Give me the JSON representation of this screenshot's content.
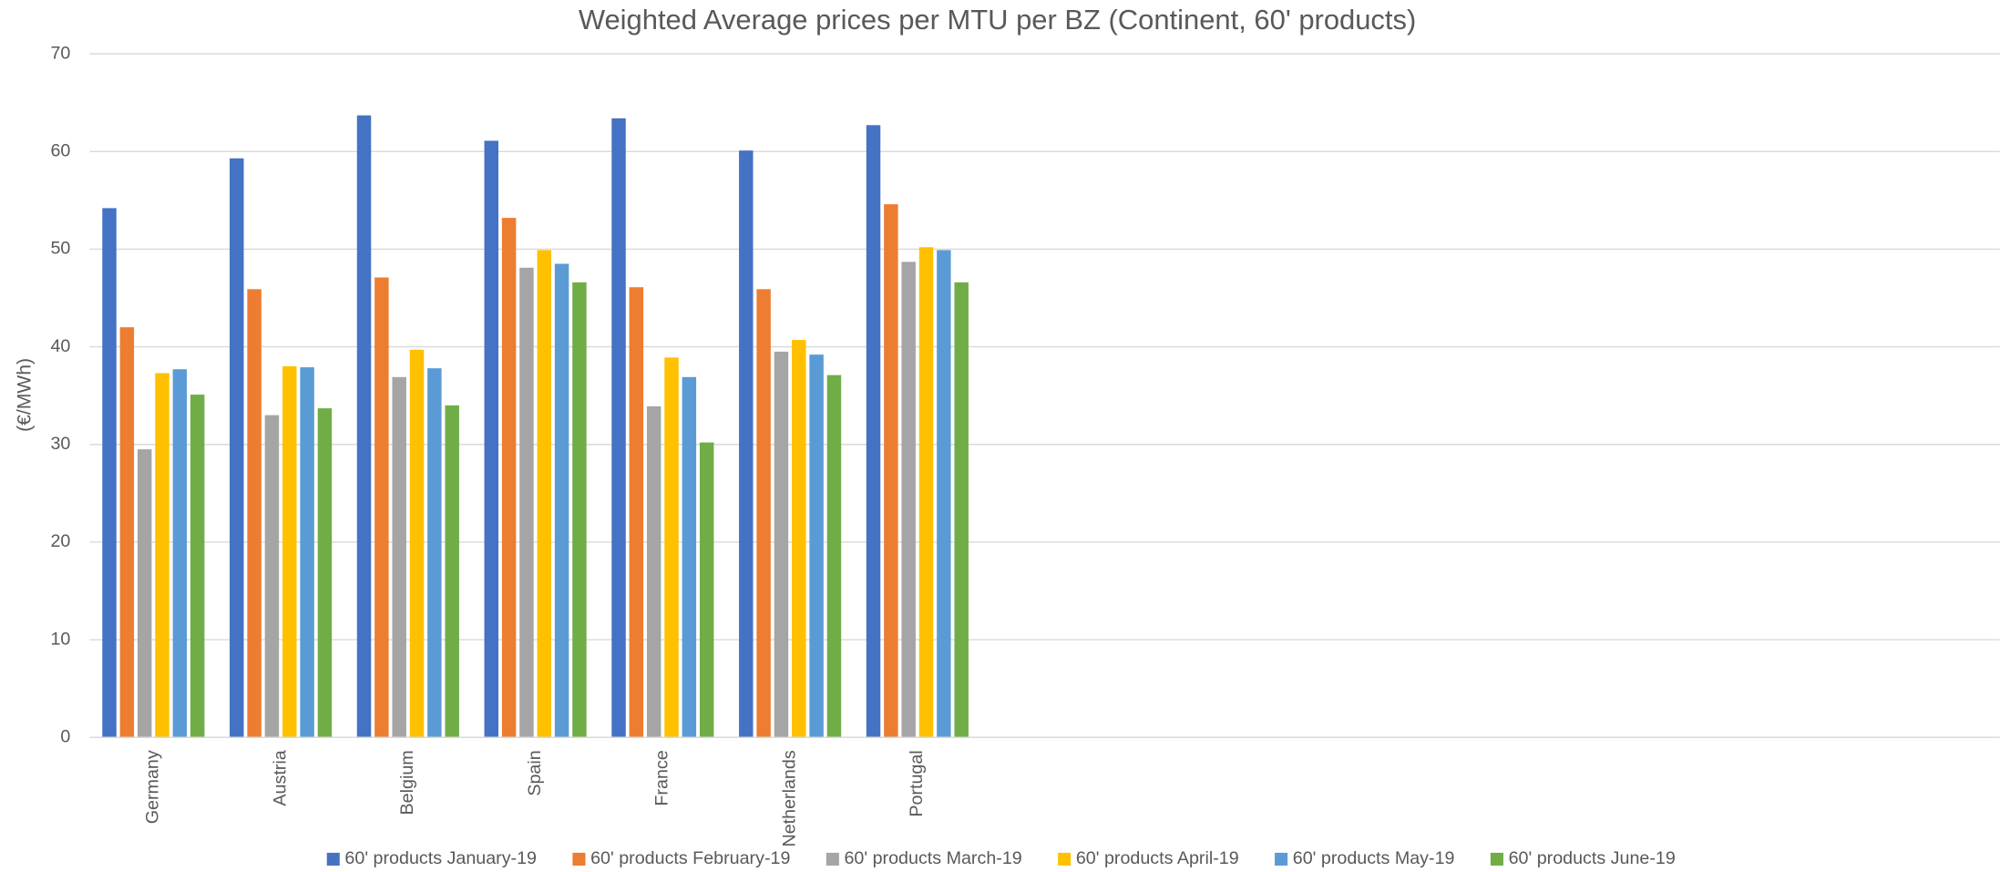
{
  "chart_data": {
    "type": "bar",
    "title": "Weighted Average prices per MTU per BZ (Continent, 60' products)",
    "y_label": "(€/MWh)",
    "categories": [
      "Germany",
      "Austria",
      "Belgium",
      "Spain",
      "France",
      "Netherlands",
      "Portugal",
      null,
      null,
      null,
      null,
      null,
      null,
      null,
      null
    ],
    "series": [
      {
        "name": "60' products January-19",
        "color": "#4472c4",
        "values": [
          54.2,
          59.3,
          63.7,
          61.1,
          63.4,
          60.1,
          62.7,
          null,
          null,
          null,
          null,
          null,
          null,
          null,
          null
        ]
      },
      {
        "name": "60' products February-19",
        "color": "#ed7d31",
        "values": [
          42,
          45.9,
          47.1,
          53.2,
          46.1,
          45.9,
          54.6,
          null,
          null,
          null,
          null,
          null,
          null,
          null,
          null
        ]
      },
      {
        "name": "60' products March-19",
        "color": "#a5a5a5",
        "values": [
          29.5,
          33,
          36.9,
          48.1,
          33.9,
          39.5,
          48.7,
          null,
          null,
          null,
          null,
          null,
          null,
          null,
          null
        ]
      },
      {
        "name": "60' products April-19",
        "color": "#ffc000",
        "values": [
          37.3,
          38,
          39.7,
          49.9,
          38.9,
          40.7,
          50.2,
          null,
          null,
          null,
          null,
          null,
          null,
          null,
          null
        ]
      },
      {
        "name": "60' products May-19",
        "color": "#5b9bd5",
        "values": [
          37.7,
          37.9,
          37.8,
          48.5,
          36.9,
          39.2,
          49.9,
          null,
          null,
          null,
          null,
          null,
          null,
          null,
          null
        ]
      },
      {
        "name": "60' products June-19",
        "color": "#70ad47",
        "values": [
          35.1,
          33.7,
          34,
          46.6,
          30.2,
          37.1,
          46.6,
          null,
          null,
          null,
          null,
          null,
          null,
          null,
          null
        ]
      }
    ],
    "ylim": [
      0,
      70
    ],
    "yticks": [
      0,
      10,
      20,
      30,
      40,
      50,
      60,
      70
    ],
    "grid": true,
    "legend": "bottom"
  }
}
